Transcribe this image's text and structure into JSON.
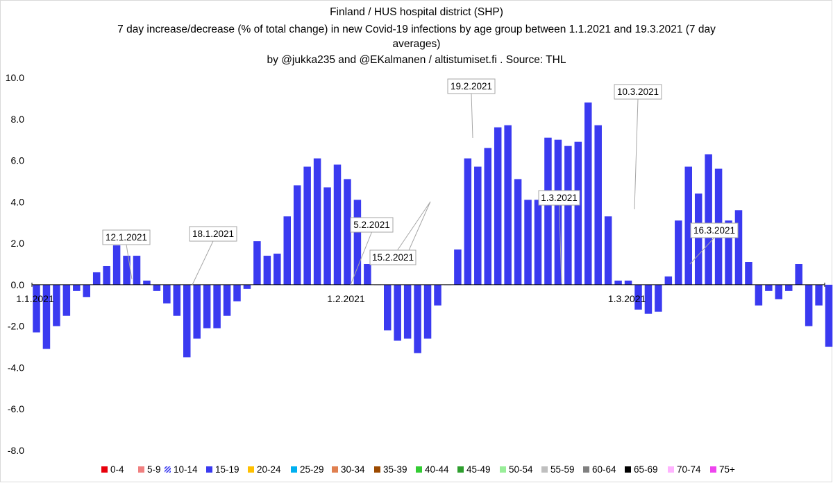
{
  "chart_data": {
    "type": "bar",
    "title_lines": [
      "Finland / HUS hospital district (SHP)",
      "7 day increase/decrease (% of total change) in new Covid-19 infections by age group between 1.1.2021 and 19.3.2021  (7 day",
      "averages)",
      "by @jukka235 and @EKalmanen / altistumiset.fi . Source: THL"
    ],
    "ylim": [
      -8,
      10
    ],
    "yticks": [
      "10.0",
      "8.0",
      "6.0",
      "4.0",
      "2.0",
      "0.0",
      "-2.0",
      "-4.0",
      "-6.0",
      "-8.0"
    ],
    "ytick_values": [
      10,
      8,
      6,
      4,
      2,
      0,
      -2,
      -4,
      -6,
      -8
    ],
    "x_date_labels": [
      {
        "day": 1,
        "label": "1.1.2021"
      },
      {
        "day": 32,
        "label": "1.2.2021"
      },
      {
        "day": 60,
        "label": "1.3.2021"
      }
    ],
    "grid": false,
    "legend_position": "bottom",
    "series": [
      {
        "name": "15-19",
        "color": "#3a3af0",
        "values": [
          -2.3,
          -3.1,
          -2.0,
          -1.5,
          -0.3,
          -0.6,
          0.6,
          0.9,
          1.9,
          1.4,
          1.4,
          0.2,
          -0.3,
          -0.9,
          -1.5,
          -3.5,
          -2.6,
          -2.1,
          -2.1,
          -1.5,
          -0.8,
          -0.2,
          2.1,
          1.4,
          1.5,
          3.3,
          4.8,
          5.7,
          6.1,
          4.7,
          5.8,
          5.1,
          4.1,
          1.0,
          0.0,
          -2.2,
          -2.7,
          -2.6,
          -3.3,
          -2.6,
          -1.0,
          0.0,
          1.7,
          6.1,
          5.7,
          6.6,
          7.6,
          7.7,
          5.1,
          4.1,
          4.1,
          7.1,
          7.0,
          6.7,
          6.9,
          8.8,
          7.7,
          3.3,
          0.2,
          0.2,
          -1.2,
          -1.4,
          -1.3,
          0.4,
          3.1,
          5.7,
          4.4,
          6.3,
          5.6,
          3.1,
          3.6,
          1.1,
          -1.0,
          -0.3,
          -0.7,
          -0.3,
          1.0,
          -2.0,
          -1.0,
          -3.0
        ]
      }
    ],
    "annotations": [
      {
        "label": "12.1.2021",
        "day": 12
      },
      {
        "label": "18.1.2021",
        "day": 18
      },
      {
        "label": "5.2.2021",
        "day": 36
      },
      {
        "label": "15.2.2021",
        "day": 46
      },
      {
        "label": "19.2.2021",
        "day": 50
      },
      {
        "label": "1.3.2021",
        "day": 60
      },
      {
        "label": "10.3.2021",
        "day": 69
      },
      {
        "label": "16.3.2021",
        "day": 75
      }
    ],
    "legend": [
      {
        "label": "0-4",
        "color": "#e8000b"
      },
      {
        "label": "5-9",
        "color": "#f08080"
      },
      {
        "label": "10-14",
        "color": "#3a3af0",
        "hatched": true
      },
      {
        "label": "15-19",
        "color": "#3a3af0"
      },
      {
        "label": "20-24",
        "color": "#ffc000"
      },
      {
        "label": "25-29",
        "color": "#00b0f0"
      },
      {
        "label": "30-34",
        "color": "#e08050"
      },
      {
        "label": "35-39",
        "color": "#9c4a00"
      },
      {
        "label": "40-44",
        "color": "#33cc33"
      },
      {
        "label": "45-49",
        "color": "#2e9e2e"
      },
      {
        "label": "50-54",
        "color": "#99ee99"
      },
      {
        "label": "55-59",
        "color": "#bfbfbf"
      },
      {
        "label": "60-64",
        "color": "#808080"
      },
      {
        "label": "65-69",
        "color": "#000000"
      },
      {
        "label": "70-74",
        "color": "#ffb3ff"
      },
      {
        "label": "75+",
        "color": "#ee44ee"
      }
    ]
  }
}
